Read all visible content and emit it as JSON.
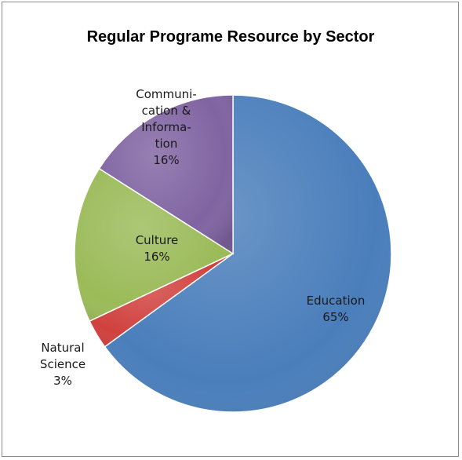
{
  "chart_data": {
    "type": "pie",
    "title": "Regular Programe Resource by Sector",
    "slices": [
      {
        "name": "Education",
        "value": 65,
        "label_lines": [
          "Education",
          "65%"
        ],
        "color": "#4a7ebb"
      },
      {
        "name": "Natural Science",
        "value": 3,
        "label_lines": [
          "Natural",
          "Science",
          "3%"
        ],
        "color": "#d0413e"
      },
      {
        "name": "Culture",
        "value": 16,
        "label_lines": [
          "Culture",
          "16%"
        ],
        "color": "#9bbb59"
      },
      {
        "name": "Communication & Information",
        "value": 16,
        "label_lines": [
          "Communi-",
          "cation &",
          "Informa-",
          "tion",
          "16%"
        ],
        "color": "#8064a2"
      }
    ],
    "start_angle_deg": 0,
    "direction": "clockwise",
    "legend": "none"
  }
}
